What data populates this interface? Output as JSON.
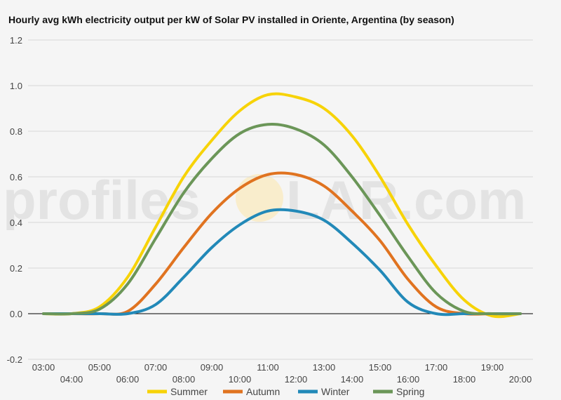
{
  "watermark": {
    "left": "profiles",
    "right": "LAR.com"
  },
  "colors": {
    "background": "#f5f5f5",
    "grid": "#d8d8d8",
    "zero_line": "#000000",
    "watermark_sun": "#fbe7b0"
  },
  "chart_data": {
    "type": "line",
    "title": "Hourly avg kWh electricity output per kW of Solar PV installed in Oriente, Argentina (by season)",
    "xlabel": "",
    "ylabel": "",
    "ylim": [
      -0.2,
      1.2
    ],
    "yticks": [
      -0.2,
      0.0,
      0.2,
      0.4,
      0.6,
      0.8,
      1.0,
      1.2
    ],
    "ytick_labels": [
      "-0.2",
      "0.0",
      "0.2",
      "0.4",
      "0.6",
      "0.8",
      "1.0",
      "1.2"
    ],
    "x_upper_labels": [
      "03:00",
      "05:00",
      "07:00",
      "09:00",
      "11:00",
      "13:00",
      "15:00",
      "17:00",
      "19:00"
    ],
    "x_lower_labels": [
      "04:00",
      "06:00",
      "08:00",
      "10:00",
      "12:00",
      "14:00",
      "16:00",
      "18:00",
      "20:00"
    ],
    "categories": [
      "03:00",
      "04:00",
      "05:00",
      "06:00",
      "07:00",
      "08:00",
      "09:00",
      "10:00",
      "11:00",
      "12:00",
      "13:00",
      "14:00",
      "15:00",
      "16:00",
      "17:00",
      "18:00",
      "19:00",
      "20:00"
    ],
    "grid": true,
    "legend_position": "bottom",
    "series": [
      {
        "name": "Summer",
        "color": "#f7d308",
        "values": [
          0.0,
          0.0,
          0.03,
          0.16,
          0.38,
          0.6,
          0.76,
          0.89,
          0.96,
          0.95,
          0.9,
          0.78,
          0.6,
          0.39,
          0.21,
          0.06,
          -0.01,
          0.0
        ]
      },
      {
        "name": "Autumn",
        "color": "#e07320",
        "values": [
          0.0,
          0.0,
          0.0,
          0.01,
          0.13,
          0.29,
          0.44,
          0.55,
          0.61,
          0.61,
          0.56,
          0.45,
          0.32,
          0.15,
          0.03,
          0.0,
          0.0,
          0.0
        ]
      },
      {
        "name": "Winter",
        "color": "#2289b8",
        "values": [
          0.0,
          0.0,
          0.0,
          0.0,
          0.04,
          0.16,
          0.29,
          0.39,
          0.45,
          0.45,
          0.41,
          0.31,
          0.19,
          0.05,
          0.0,
          0.0,
          0.0,
          0.0
        ]
      },
      {
        "name": "Spring",
        "color": "#6b9658",
        "values": [
          0.0,
          0.0,
          0.02,
          0.13,
          0.33,
          0.53,
          0.68,
          0.79,
          0.83,
          0.81,
          0.74,
          0.6,
          0.43,
          0.25,
          0.09,
          0.01,
          0.0,
          0.0
        ]
      }
    ]
  }
}
